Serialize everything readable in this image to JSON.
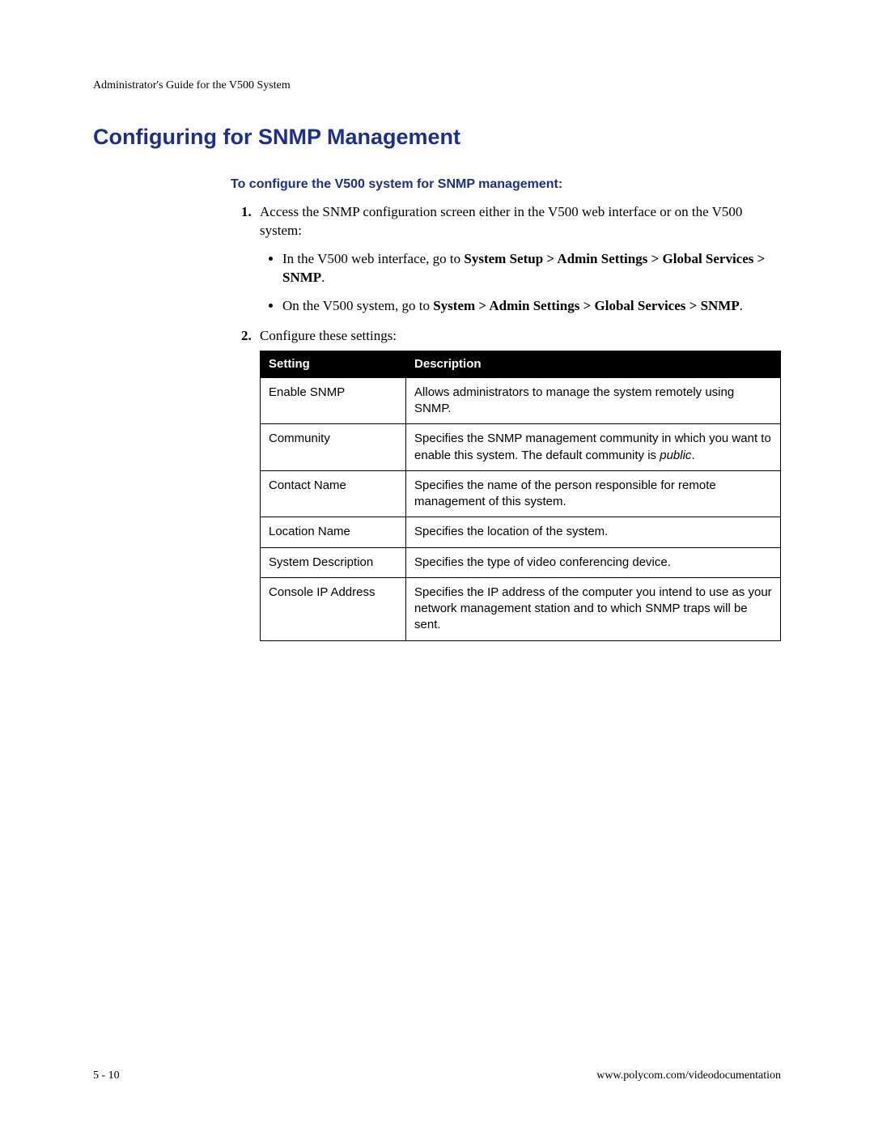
{
  "colors": {
    "heading_blue": "#1a2f8f",
    "text_black": "#000000",
    "table_header_bg": "#000000",
    "table_header_fg": "#ffffff",
    "page_bg": "#ffffff",
    "border": "#000000"
  },
  "typography": {
    "body_font": "Palatino Linotype, Palatino, Georgia, serif",
    "heading_font": "Arial, Helvetica, sans-serif",
    "body_size_pt": 12,
    "heading_size_pt": 20,
    "subheading_size_pt": 12,
    "table_font_size_pt": 11
  },
  "header": {
    "doc_title": "Administrator's Guide for the V500 System"
  },
  "heading": "Configuring for SNMP Management",
  "subheading": "To configure the V500 system for SNMP management:",
  "steps": {
    "s1_intro": "Access the SNMP configuration screen either in the V500 web interface or on the V500 system:",
    "s1_b1_pre": "In the V500 web interface, go to ",
    "s1_b1_bold": "System Setup > Admin Settings > Global Services > SNMP",
    "s1_b1_post": ".",
    "s1_b2_pre": "On the V500 system, go to ",
    "s1_b2_bold": "System > Admin Settings > Global Services > SNMP",
    "s1_b2_post": ".",
    "s2": "Configure these settings:"
  },
  "table": {
    "columns": [
      "Setting",
      "Description"
    ],
    "col_widths_pct": [
      28,
      72
    ],
    "rows": [
      {
        "setting": "Enable SNMP",
        "desc": "Allows administrators to manage the system remotely using SNMP."
      },
      {
        "setting": "Community",
        "desc_pre": "Specifies the SNMP management community in which you want to enable this system. The default community is ",
        "desc_italic": "public",
        "desc_post": "."
      },
      {
        "setting": "Contact Name",
        "desc": "Specifies the name of the person responsible for remote management of this system."
      },
      {
        "setting": "Location Name",
        "desc": "Specifies the location of the system."
      },
      {
        "setting": "System Description",
        "desc": "Specifies the type of video conferencing device."
      },
      {
        "setting": "Console IP Address",
        "desc": "Specifies the IP address of the computer you intend to use as your network management station and to which SNMP traps will be sent."
      }
    ]
  },
  "footer": {
    "left": "5 - 10",
    "right": "www.polycom.com/videodocumentation"
  }
}
